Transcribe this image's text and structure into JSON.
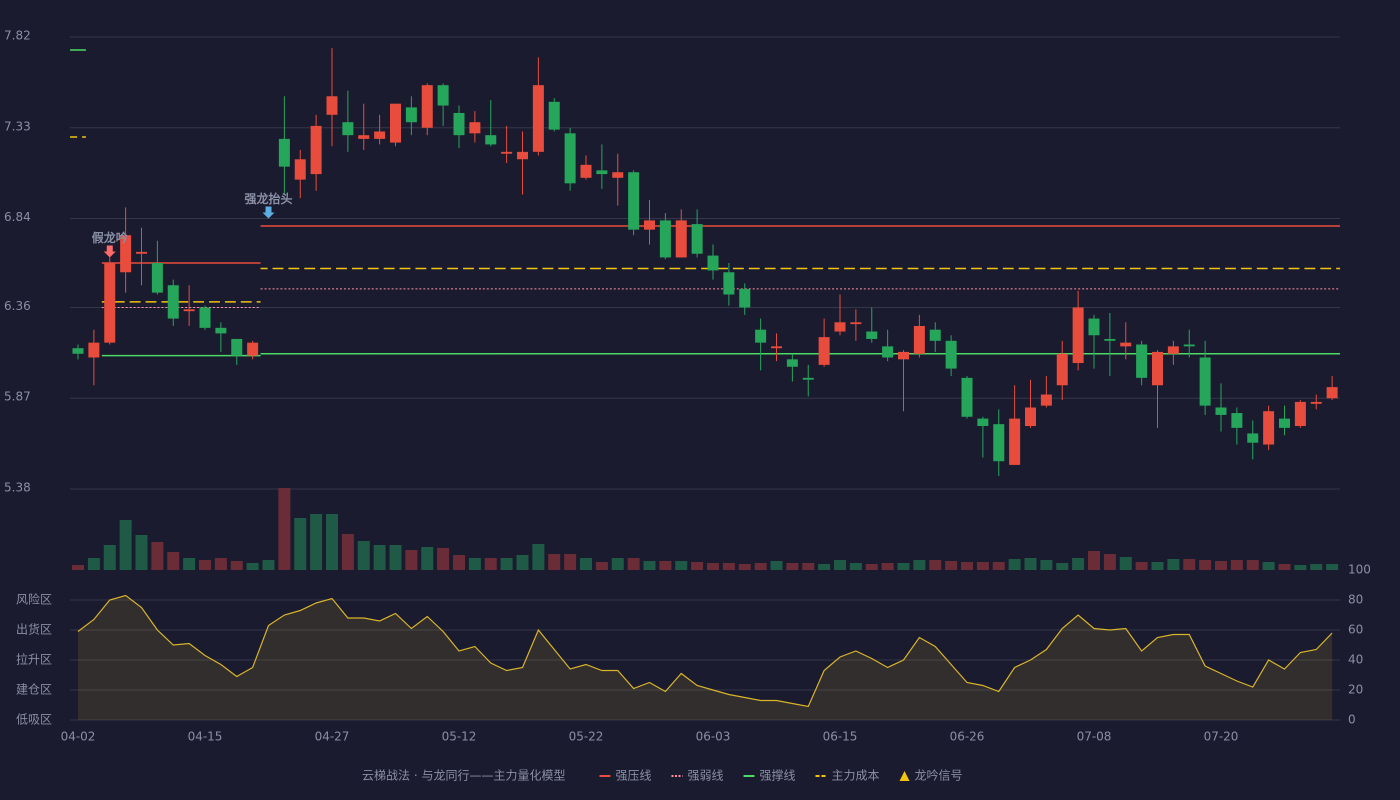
{
  "chart_data": [
    {
      "type": "candlestick",
      "title": "云梯战法 · 与龙同行——主力量化模型",
      "categories": [
        "04-02",
        null,
        null,
        null,
        null,
        null,
        null,
        null,
        "04-15",
        null,
        null,
        null,
        null,
        null,
        null,
        null,
        "04-27",
        null,
        null,
        null,
        null,
        null,
        null,
        null,
        "05-12",
        null,
        null,
        null,
        null,
        null,
        null,
        null,
        "05-22",
        null,
        null,
        null,
        null,
        null,
        null,
        null,
        "06-03",
        null,
        null,
        null,
        null,
        null,
        null,
        null,
        "06-15",
        null,
        null,
        null,
        null,
        null,
        null,
        null,
        "06-26",
        null,
        null,
        null,
        null,
        null,
        null,
        null,
        "07-08",
        null,
        null,
        null,
        null,
        null,
        null,
        null,
        "07-20",
        null,
        null,
        null,
        null,
        null,
        null,
        null
      ],
      "open": [
        6.14,
        6.09,
        6.17,
        6.55,
        6.65,
        6.6,
        6.48,
        6.34,
        6.36,
        6.25,
        6.19,
        6.1,
        null,
        7.27,
        7.05,
        7.08,
        7.4,
        7.36,
        7.27,
        7.27,
        7.25,
        7.44,
        7.33,
        7.56,
        7.41,
        7.3,
        7.29,
        7.19,
        7.16,
        7.2,
        7.47,
        7.3,
        7.06,
        7.1,
        7.06,
        7.09,
        6.78,
        6.83,
        6.63,
        6.81,
        6.64,
        6.55,
        6.46,
        6.24,
        6.14,
        6.08,
        5.98,
        6.05,
        6.23,
        6.27,
        6.23,
        6.15,
        6.08,
        6.11,
        6.24,
        6.18,
        5.98,
        5.76,
        5.73,
        5.51,
        5.72,
        5.83,
        5.94,
        6.06,
        6.3,
        6.19,
        6.15,
        6.16,
        5.94,
        6.11,
        6.16,
        6.09,
        5.82,
        5.79,
        5.68,
        5.62,
        5.76,
        5.72,
        5.84,
        5.87
      ],
      "high": [
        6.16,
        6.24,
        6.63,
        6.9,
        6.79,
        6.72,
        6.51,
        6.48,
        6.37,
        6.28,
        6.19,
        6.18,
        null,
        7.5,
        7.21,
        7.4,
        7.76,
        7.53,
        7.46,
        7.4,
        7.46,
        7.5,
        7.57,
        7.57,
        7.45,
        7.42,
        7.48,
        7.34,
        7.31,
        7.71,
        7.49,
        7.33,
        7.18,
        7.24,
        7.19,
        7.1,
        6.94,
        6.87,
        6.89,
        6.89,
        6.7,
        6.6,
        6.49,
        6.3,
        6.22,
        6.11,
        6.05,
        6.3,
        6.43,
        6.35,
        6.36,
        6.24,
        6.13,
        6.32,
        6.28,
        6.21,
        5.99,
        5.77,
        5.81,
        5.94,
        5.97,
        5.99,
        6.18,
        6.45,
        6.32,
        6.33,
        6.28,
        6.18,
        6.13,
        6.18,
        6.24,
        6.18,
        5.95,
        5.82,
        5.75,
        5.83,
        5.83,
        5.86,
        5.89,
        5.99
      ],
      "low": [
        6.08,
        5.94,
        6.16,
        6.44,
        6.48,
        6.43,
        6.26,
        6.26,
        6.24,
        6.12,
        6.05,
        6.08,
        null,
        6.97,
        6.95,
        6.99,
        7.23,
        7.2,
        7.21,
        7.24,
        7.23,
        7.29,
        7.29,
        7.34,
        7.22,
        7.25,
        7.23,
        7.14,
        6.97,
        7.18,
        7.31,
        6.99,
        7.05,
        7.0,
        6.91,
        6.75,
        6.7,
        6.62,
        6.63,
        6.63,
        6.51,
        6.37,
        6.32,
        6.02,
        6.07,
        5.96,
        5.88,
        6.04,
        6.21,
        6.18,
        6.17,
        6.07,
        5.8,
        6.09,
        6.12,
        5.99,
        5.76,
        5.55,
        5.45,
        5.51,
        5.71,
        5.82,
        5.86,
        6.02,
        6.03,
        5.99,
        6.08,
        5.94,
        5.71,
        6.05,
        6.09,
        5.78,
        5.69,
        5.62,
        5.54,
        5.59,
        5.67,
        5.71,
        5.81,
        5.86
      ],
      "close": [
        6.11,
        6.17,
        6.6,
        6.75,
        6.66,
        6.44,
        6.3,
        6.35,
        6.25,
        6.22,
        6.1,
        6.17,
        null,
        7.12,
        7.16,
        7.34,
        7.5,
        7.29,
        7.29,
        7.31,
        7.46,
        7.36,
        7.56,
        7.45,
        7.29,
        7.36,
        7.24,
        7.2,
        7.2,
        7.56,
        7.32,
        7.03,
        7.13,
        7.08,
        7.09,
        6.78,
        6.83,
        6.63,
        6.83,
        6.65,
        6.56,
        6.43,
        6.36,
        6.17,
        6.15,
        6.04,
        5.97,
        6.2,
        6.28,
        6.28,
        6.19,
        6.09,
        6.12,
        6.26,
        6.18,
        6.03,
        5.77,
        5.72,
        5.53,
        5.76,
        5.82,
        5.89,
        6.11,
        6.36,
        6.21,
        6.18,
        6.17,
        5.98,
        6.12,
        6.15,
        6.15,
        5.83,
        5.78,
        5.71,
        5.63,
        5.8,
        5.71,
        5.85,
        5.85,
        5.93
      ],
      "up_color": "#e74c3c",
      "down_color": "#26a65b",
      "volume": [
        5,
        12,
        25,
        50,
        35,
        28,
        18,
        12,
        10,
        12,
        9,
        7,
        10,
        82,
        52,
        56,
        56,
        36,
        29,
        25,
        25,
        20,
        23,
        22,
        15,
        12,
        12,
        12,
        15,
        26,
        16,
        16,
        12,
        8,
        12,
        12,
        9,
        9,
        9,
        8,
        7,
        7,
        6,
        7,
        9,
        7,
        7,
        6,
        10,
        7,
        6,
        7,
        7,
        10,
        10,
        9,
        8,
        8,
        8,
        11,
        12,
        10,
        7,
        12,
        19,
        16,
        13,
        8,
        8,
        11,
        11,
        10,
        9,
        10,
        10,
        8,
        6,
        5,
        6,
        6
      ],
      "volume_up_color": "#1f5a46",
      "volume_down_color": "#6a2c37",
      "series": [
        {
          "name": "强压线",
          "color": "#e74c3c",
          "dash": "solid",
          "values": [
            null,
            null,
            6.6,
            6.6,
            6.6,
            6.6,
            6.6,
            6.6,
            6.6,
            6.6,
            6.6,
            6.6,
            6.8,
            6.8,
            6.8,
            6.8,
            6.8,
            6.8,
            6.8,
            6.8,
            6.8,
            6.8,
            6.8,
            6.8,
            6.8,
            6.8,
            6.8,
            6.8,
            6.8,
            6.8,
            6.8,
            6.8,
            6.8,
            6.8,
            6.8,
            6.8,
            6.8,
            6.8,
            6.8,
            6.8,
            6.8,
            6.8,
            6.8,
            6.8,
            6.8,
            6.8,
            6.8,
            6.8,
            6.8,
            6.8,
            6.8,
            6.8,
            6.8,
            6.8,
            6.8,
            6.8,
            6.8,
            6.8,
            6.8,
            6.8,
            6.8,
            6.8,
            6.8,
            6.8,
            6.8,
            6.8,
            6.8,
            6.8,
            6.8,
            6.8,
            6.8,
            6.8,
            6.8,
            6.8,
            6.8,
            6.8,
            6.8,
            6.8,
            6.8,
            6.8
          ]
        },
        {
          "name": "强弱线",
          "color": "#ff8fa3",
          "dash": "dotted",
          "values": [
            null,
            null,
            6.36,
            6.36,
            6.36,
            6.36,
            6.36,
            6.36,
            6.36,
            6.36,
            6.36,
            6.36,
            6.46,
            6.46,
            6.46,
            6.46,
            6.46,
            6.46,
            6.46,
            6.46,
            6.46,
            6.46,
            6.46,
            6.46,
            6.46,
            6.46,
            6.46,
            6.46,
            6.46,
            6.46,
            6.46,
            6.46,
            6.46,
            6.46,
            6.46,
            6.46,
            6.46,
            6.46,
            6.46,
            6.46,
            6.46,
            6.46,
            6.46,
            6.46,
            6.46,
            6.46,
            6.46,
            6.46,
            6.46,
            6.46,
            6.46,
            6.46,
            6.46,
            6.46,
            6.46,
            6.46,
            6.46,
            6.46,
            6.46,
            6.46,
            6.46,
            6.46,
            6.46,
            6.46,
            6.46,
            6.46,
            6.46,
            6.46,
            6.46,
            6.46,
            6.46,
            6.46,
            6.46,
            6.46,
            6.46,
            6.46,
            6.46,
            6.46,
            6.46,
            6.46
          ]
        },
        {
          "name": "强撑线",
          "color": "#4cd964",
          "dash": "solid",
          "values": [
            7.75,
            null,
            6.1,
            6.1,
            6.1,
            6.1,
            6.1,
            6.1,
            6.1,
            6.1,
            6.1,
            6.1,
            6.11,
            6.11,
            6.11,
            6.11,
            6.11,
            6.11,
            6.11,
            6.11,
            6.11,
            6.11,
            6.11,
            6.11,
            6.11,
            6.11,
            6.11,
            6.11,
            6.11,
            6.11,
            6.11,
            6.11,
            6.11,
            6.11,
            6.11,
            6.11,
            6.11,
            6.11,
            6.11,
            6.11,
            6.11,
            6.11,
            6.11,
            6.11,
            6.11,
            6.11,
            6.11,
            6.11,
            6.11,
            6.11,
            6.11,
            6.11,
            6.11,
            6.11,
            6.11,
            6.11,
            6.11,
            6.11,
            6.11,
            6.11,
            6.11,
            6.11,
            6.11,
            6.11,
            6.11,
            6.11,
            6.11,
            6.11,
            6.11,
            6.11,
            6.11,
            6.11,
            6.11,
            6.11,
            6.11,
            6.11,
            6.11,
            6.11,
            6.11,
            6.11
          ]
        },
        {
          "name": "主力成本",
          "color": "#f1c40f",
          "dash": "dashed",
          "values": [
            7.28,
            null,
            6.39,
            6.39,
            6.39,
            6.39,
            6.39,
            6.39,
            6.39,
            6.39,
            6.39,
            6.39,
            6.57,
            6.57,
            6.57,
            6.57,
            6.57,
            6.57,
            6.57,
            6.57,
            6.57,
            6.57,
            6.57,
            6.57,
            6.57,
            6.57,
            6.57,
            6.57,
            6.57,
            6.57,
            6.57,
            6.57,
            6.57,
            6.57,
            6.57,
            6.57,
            6.57,
            6.57,
            6.57,
            6.57,
            6.57,
            6.57,
            6.57,
            6.57,
            6.57,
            6.57,
            6.57,
            6.57,
            6.57,
            6.57,
            6.57,
            6.57,
            6.57,
            6.57,
            6.57,
            6.57,
            6.57,
            6.57,
            6.57,
            6.57,
            6.57,
            6.57,
            6.57,
            6.57,
            6.57,
            6.57,
            6.57,
            6.57,
            6.57,
            6.57,
            6.57,
            6.57,
            6.57,
            6.57,
            6.57,
            6.57,
            6.57,
            6.57,
            6.57,
            6.57
          ]
        }
      ],
      "signal_legend": {
        "name": "龙吟信号",
        "color": "#f1c40f"
      },
      "signals": [
        {
          "at": 2,
          "value": 6.63,
          "label": "假龙吟",
          "color": "#ff6b6b"
        },
        {
          "at": 12,
          "value": 6.84,
          "label": "强龙抬头",
          "color": "#5dade2"
        }
      ],
      "ylim": [
        5.38,
        7.82
      ],
      "yticks": [
        7.82,
        7.33,
        6.84,
        6.36,
        5.87,
        5.38
      ],
      "grid": true
    },
    {
      "type": "area",
      "values": [
        59,
        67,
        80,
        83,
        75,
        60,
        50,
        51,
        43,
        37,
        29,
        35,
        63,
        70,
        73,
        78,
        81,
        68,
        68,
        66,
        71,
        61,
        69,
        59,
        46,
        49,
        38,
        33,
        35,
        60,
        47,
        34,
        37,
        33,
        33,
        21,
        25,
        19,
        31,
        23,
        20,
        17,
        15,
        13,
        13,
        11,
        9,
        33,
        42,
        46,
        41,
        35,
        40,
        55,
        49,
        37,
        25,
        23,
        19,
        35,
        40,
        47,
        61,
        70,
        61,
        60,
        61,
        46,
        55,
        57,
        57,
        36,
        31,
        26,
        22,
        40,
        34,
        45,
        47,
        58
      ],
      "color": "#d9b42a",
      "ylim": [
        0,
        100
      ],
      "yticks": [
        100,
        80,
        60,
        40,
        20,
        0
      ],
      "ytick_colors": [
        "#4cd964",
        "#f0a020",
        "#e040fb",
        "#4a90e2",
        "#ff6b4a",
        "#ff3b3b"
      ],
      "zone_ticks": [
        {
          "value": 80,
          "label": "风险区"
        },
        {
          "value": 60,
          "label": "出货区"
        },
        {
          "value": 40,
          "label": "拉升区"
        },
        {
          "value": 20,
          "label": "建仓区"
        },
        {
          "value": 0,
          "label": "低吸区"
        }
      ],
      "zone_colors": [
        "#f0a020",
        "#e040fb",
        "#4a90e2",
        "#ff6b6b",
        "#ff4d4d"
      ],
      "grid": true
    }
  ]
}
